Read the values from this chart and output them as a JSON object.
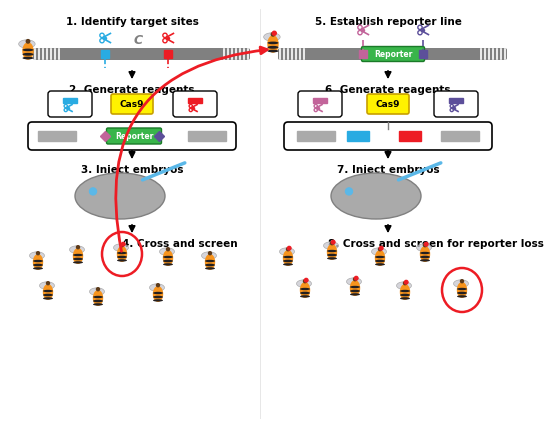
{
  "bg_color": "#ffffff",
  "step1_title": "1. Identify target sites",
  "step2_title": "2. Generate reagents",
  "step3_title": "3. Inject embryos",
  "step4_title": "4. Cross and screen",
  "step5_title": "5. Establish reporter line",
  "step6_title": "6. Generate reagents",
  "step7_title": "7. Inject embryos",
  "step8_title": "8. Cross and screen for reporter loss",
  "cyan_color": "#29ABE2",
  "red_color": "#ED1C24",
  "green_color": "#39B54A",
  "yellow_color": "#FFF200",
  "pink_color": "#C2649A",
  "purple_color": "#5C4F9A",
  "gray_color": "#808080",
  "light_gray": "#AAAAAA",
  "chrom_gray": "#808080",
  "bee_yellow": "#F7941D",
  "bee_dark": "#231F20"
}
